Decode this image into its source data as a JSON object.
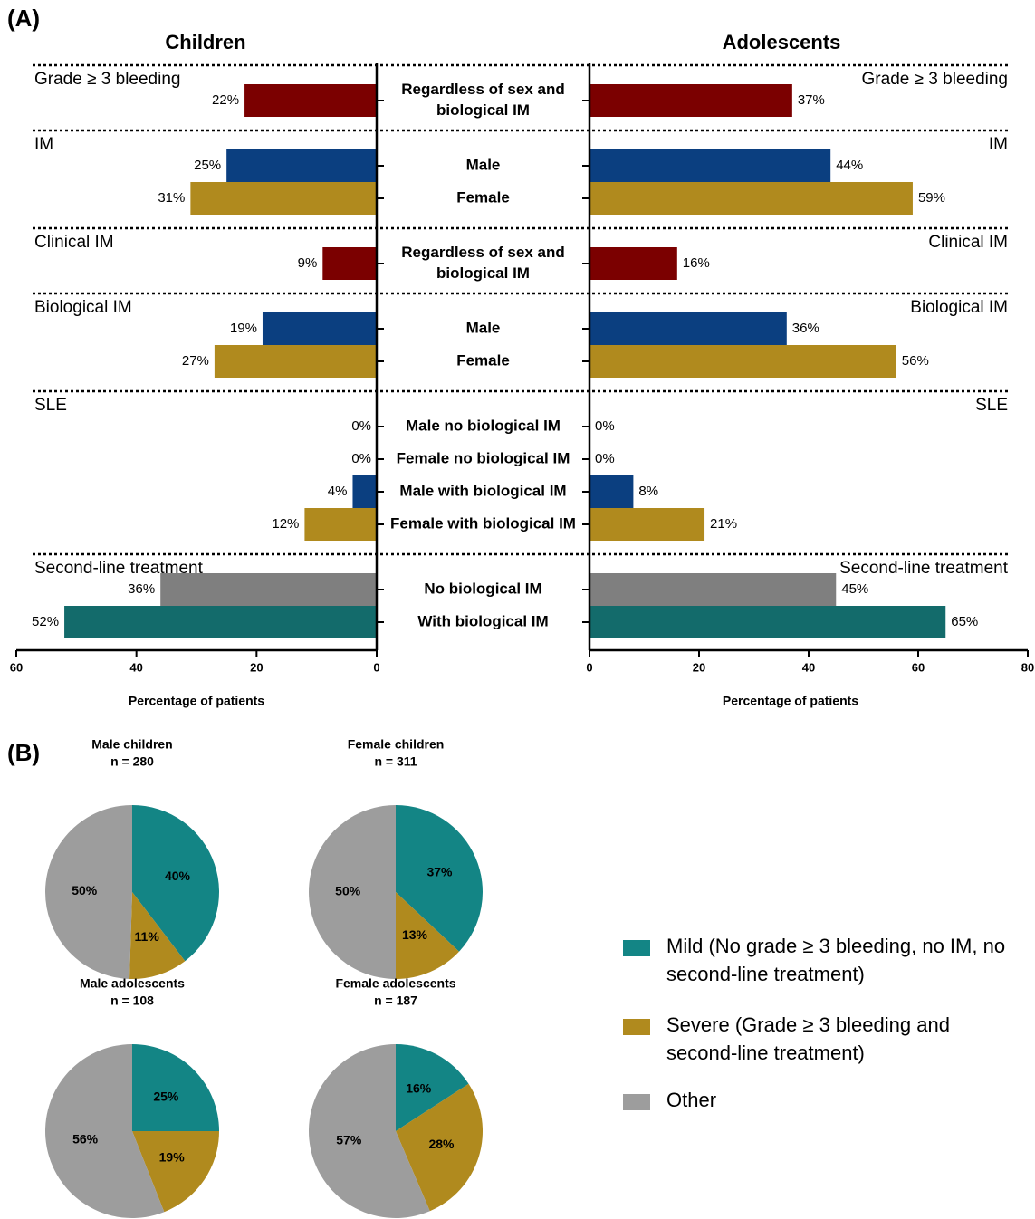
{
  "panel_a_label": "(A)",
  "panel_b_label": "(B)",
  "legend": [
    {
      "name": "Mild (No grade ≥ 3 bleeding, no IM, no second-line treatment)",
      "color": "#138585"
    },
    {
      "name": "Severe (Grade ≥ 3 bleeding and second-line treatment)",
      "color": "#b08a1e"
    },
    {
      "name": "Other",
      "color": "#9d9d9d"
    }
  ],
  "chart_data": [
    {
      "type": "butterfly",
      "left": {
        "title": "Children",
        "xlabel": "Percentage of patients",
        "xlim": [
          60,
          0
        ],
        "xticks": [
          60,
          40,
          20,
          0
        ]
      },
      "right": {
        "title": "Adolescents",
        "xlabel": "Percentage of patients",
        "xlim": [
          0,
          80
        ],
        "xticks": [
          0,
          20,
          40,
          60,
          80
        ]
      },
      "groups": [
        {
          "name": "Grade ≥ 3 bleeding",
          "categories": [
            "Regardless of sex and biological IM"
          ],
          "colors": [
            "#7b0000"
          ],
          "left_values": [
            22
          ],
          "left_value_labels": [
            "22%"
          ],
          "right_values": [
            37
          ],
          "right_value_labels": [
            "37%"
          ]
        },
        {
          "name": "IM",
          "categories": [
            "Male",
            "Female"
          ],
          "colors": [
            "#0b3f80",
            "#b08a1e"
          ],
          "left_values": [
            25,
            31
          ],
          "left_value_labels": [
            "25%",
            "31%"
          ],
          "right_values": [
            44,
            59
          ],
          "right_value_labels": [
            "44%",
            "59%"
          ]
        },
        {
          "name": "Clinical IM",
          "categories": [
            "Regardless of sex and biological IM"
          ],
          "colors": [
            "#7b0000"
          ],
          "left_values": [
            9
          ],
          "left_value_labels": [
            "9%"
          ],
          "right_values": [
            16
          ],
          "right_value_labels": [
            "16%"
          ]
        },
        {
          "name": "Biological IM",
          "categories": [
            "Male",
            "Female"
          ],
          "colors": [
            "#0b3f80",
            "#b08a1e"
          ],
          "left_values": [
            19,
            27
          ],
          "left_value_labels": [
            "19%",
            "27%"
          ],
          "right_values": [
            36,
            56
          ],
          "right_value_labels": [
            "36%",
            "56%"
          ]
        },
        {
          "name": "SLE",
          "categories": [
            "Male no biological IM",
            "Female no biological IM",
            "Male with biological IM",
            "Female with biological IM"
          ],
          "colors": [
            "#0b3f80",
            "#b08a1e",
            "#0b3f80",
            "#b08a1e"
          ],
          "left_values": [
            0,
            0,
            4,
            12
          ],
          "left_value_labels": [
            "0%",
            "0%",
            "4%",
            "12%"
          ],
          "right_values": [
            0,
            0,
            8,
            21
          ],
          "right_value_labels": [
            "0%",
            "0%",
            "8%",
            "21%"
          ]
        },
        {
          "name": "Second-line treatment",
          "categories": [
            "No biological IM",
            "With biological IM"
          ],
          "colors": [
            "#7f7f7f",
            "#136b6b"
          ],
          "left_values": [
            36,
            52
          ],
          "left_value_labels": [
            "36%",
            "52%"
          ],
          "right_values": [
            45,
            65
          ],
          "right_value_labels": [
            "45%",
            "65%"
          ]
        }
      ]
    },
    {
      "type": "pie",
      "title": "Male children",
      "subtitle": "n = 280",
      "values": [
        40,
        11,
        50
      ],
      "value_labels": [
        "40%",
        "11%",
        "50%"
      ]
    },
    {
      "type": "pie",
      "title": "Female children",
      "subtitle": "n = 311",
      "values": [
        37,
        13,
        50
      ],
      "value_labels": [
        "37%",
        "13%",
        "50%"
      ]
    },
    {
      "type": "pie",
      "title": "Male adolescents",
      "subtitle": "n = 108",
      "values": [
        25,
        19,
        56
      ],
      "value_labels": [
        "25%",
        "19%",
        "56%"
      ]
    },
    {
      "type": "pie",
      "title": "Female adolescents",
      "subtitle": "n = 187",
      "values": [
        16,
        28,
        57
      ],
      "value_labels": [
        "16%",
        "28%",
        "57%"
      ]
    }
  ]
}
